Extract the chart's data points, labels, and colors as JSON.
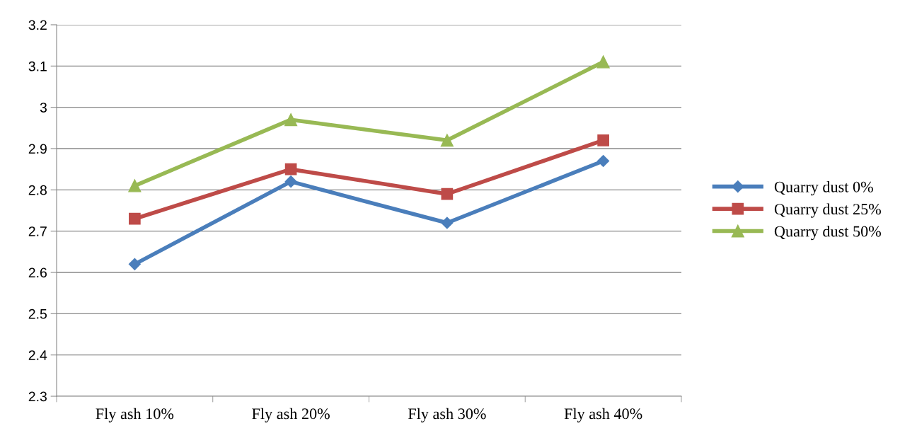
{
  "chart_data": {
    "type": "line",
    "categories": [
      "Fly ash 10%",
      "Fly ash 20%",
      "Fly ash 30%",
      "Fly ash 40%"
    ],
    "series": [
      {
        "name": "Quarry dust 0%",
        "color": "#4a7ebb",
        "marker": "diamond",
        "values": [
          2.62,
          2.82,
          2.72,
          2.87
        ]
      },
      {
        "name": "Quarry dust 25%",
        "color": "#be4b48",
        "marker": "square",
        "values": [
          2.73,
          2.85,
          2.79,
          2.92
        ]
      },
      {
        "name": "Quarry dust 50%",
        "color": "#98b954",
        "marker": "triangle",
        "values": [
          2.81,
          2.97,
          2.92,
          3.11
        ]
      }
    ],
    "ylim": [
      2.3,
      3.2
    ],
    "yticks": [
      2.3,
      2.4,
      2.5,
      2.6,
      2.7,
      2.8,
      2.9,
      3,
      3.1,
      3.2
    ],
    "grid": "y",
    "legend": "right",
    "line_style": "solid"
  }
}
